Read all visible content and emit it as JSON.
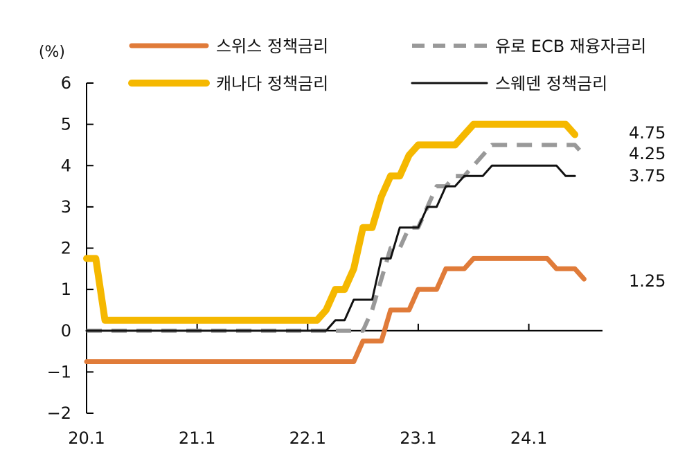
{
  "chart_data": {
    "type": "line",
    "unit": "(%)",
    "ylim": [
      -2,
      6
    ],
    "yticks": [
      "6",
      "5",
      "4",
      "3",
      "2",
      "1",
      "0",
      "−1",
      "−2"
    ],
    "ytick_values": [
      6,
      5,
      4,
      3,
      2,
      1,
      0,
      -1,
      -2
    ],
    "xlim": [
      "2020-01",
      "2024-09"
    ],
    "xticks": [
      "20.1",
      "21.1",
      "22.1",
      "23.1",
      "24.1"
    ],
    "xtick_dates": [
      "2020-01",
      "2021-01",
      "2022-01",
      "2023-01",
      "2024-01"
    ],
    "grid": false,
    "legend_position": "top",
    "series": [
      {
        "name": "스위스 정책금리",
        "color": "#E07B39",
        "style": "solid-thick",
        "end_label": "1.25",
        "points": [
          [
            "2020-01",
            -0.75
          ],
          [
            "2022-06",
            -0.75
          ],
          [
            "2022-07",
            -0.25
          ],
          [
            "2022-09",
            -0.25
          ],
          [
            "2022-10",
            0.5
          ],
          [
            "2022-12",
            0.5
          ],
          [
            "2023-01",
            1.0
          ],
          [
            "2023-03",
            1.0
          ],
          [
            "2023-04",
            1.5
          ],
          [
            "2023-06",
            1.5
          ],
          [
            "2023-07",
            1.75
          ],
          [
            "2024-03",
            1.75
          ],
          [
            "2024-04",
            1.5
          ],
          [
            "2024-06",
            1.5
          ],
          [
            "2024-07",
            1.25
          ]
        ]
      },
      {
        "name": "유로 ECB 재융자금리",
        "color": "#999999",
        "style": "dashed",
        "end_label": "4.25",
        "points": [
          [
            "2020-01",
            0
          ],
          [
            "2022-07",
            0
          ],
          [
            "2022-08",
            0.5
          ],
          [
            "2022-09",
            1.25
          ],
          [
            "2022-10",
            2.0
          ],
          [
            "2022-11",
            2.0
          ],
          [
            "2022-12",
            2.5
          ],
          [
            "2023-01",
            2.5
          ],
          [
            "2023-02",
            3.0
          ],
          [
            "2023-03",
            3.5
          ],
          [
            "2023-04",
            3.5
          ],
          [
            "2023-05",
            3.75
          ],
          [
            "2023-06",
            3.75
          ],
          [
            "2023-07",
            4.0
          ],
          [
            "2023-08",
            4.25
          ],
          [
            "2023-09",
            4.5
          ],
          [
            "2024-06",
            4.5
          ],
          [
            "2024-07",
            4.25
          ]
        ]
      },
      {
        "name": "캐나다 정책금리",
        "color": "#F5B800",
        "style": "solid-thicker",
        "end_label": "4.75",
        "points": [
          [
            "2020-01",
            1.75
          ],
          [
            "2020-02",
            1.75
          ],
          [
            "2020-03",
            0.25
          ],
          [
            "2022-02",
            0.25
          ],
          [
            "2022-03",
            0.5
          ],
          [
            "2022-04",
            1.0
          ],
          [
            "2022-05",
            1.0
          ],
          [
            "2022-06",
            1.5
          ],
          [
            "2022-07",
            2.5
          ],
          [
            "2022-08",
            2.5
          ],
          [
            "2022-09",
            3.25
          ],
          [
            "2022-10",
            3.75
          ],
          [
            "2022-11",
            3.75
          ],
          [
            "2022-12",
            4.25
          ],
          [
            "2023-01",
            4.5
          ],
          [
            "2023-05",
            4.5
          ],
          [
            "2023-06",
            4.75
          ],
          [
            "2023-07",
            5.0
          ],
          [
            "2024-05",
            5.0
          ],
          [
            "2024-06",
            4.75
          ]
        ]
      },
      {
        "name": "스웨덴 정책금리",
        "color": "#111111",
        "style": "solid-thin",
        "end_label": "3.75",
        "points": [
          [
            "2020-01",
            0
          ],
          [
            "2022-03",
            0
          ],
          [
            "2022-04",
            0.25
          ],
          [
            "2022-05",
            0.25
          ],
          [
            "2022-06",
            0.75
          ],
          [
            "2022-08",
            0.75
          ],
          [
            "2022-09",
            1.75
          ],
          [
            "2022-10",
            1.75
          ],
          [
            "2022-11",
            2.5
          ],
          [
            "2023-01",
            2.5
          ],
          [
            "2023-02",
            3.0
          ],
          [
            "2023-03",
            3.0
          ],
          [
            "2023-04",
            3.5
          ],
          [
            "2023-05",
            3.5
          ],
          [
            "2023-06",
            3.75
          ],
          [
            "2023-08",
            3.75
          ],
          [
            "2023-09",
            4.0
          ],
          [
            "2024-04",
            4.0
          ],
          [
            "2024-05",
            3.75
          ],
          [
            "2024-06",
            3.75
          ]
        ]
      }
    ]
  }
}
